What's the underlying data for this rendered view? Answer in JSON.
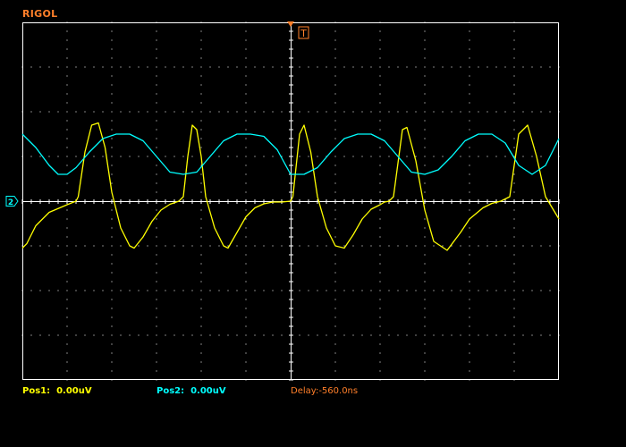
{
  "brand": {
    "label": "RIGOL",
    "color": "#ff7f2a"
  },
  "markers": {
    "trigger_label": "T",
    "ch2_label": "2",
    "marker_color": "#ff7f2a"
  },
  "status": {
    "pos1_label": "Pos1:",
    "pos1_value": "0.00uV",
    "pos1_color": "#ffff00",
    "pos2_label": "Pos2:",
    "pos2_value": "0.00uV",
    "pos2_color": "#00ffff",
    "delay_label": "Delay:-560.0ns",
    "delay_color": "#ff7f2a"
  },
  "chart_data": {
    "type": "line",
    "title": "",
    "xlabel": "",
    "ylabel": "",
    "grid": true,
    "x_divisions": 12,
    "y_divisions": 8,
    "xlim": [
      0,
      12
    ],
    "ylim": [
      -4,
      4
    ],
    "period_div": 2.46,
    "series": [
      {
        "channel": "CH1",
        "color": "#ffff00",
        "x": [
          0,
          0.1,
          0.3,
          0.6,
          1.0,
          1.2,
          1.25,
          1.4,
          1.55,
          1.7,
          1.85,
          2.0,
          2.2,
          2.4,
          2.5,
          2.7,
          2.9,
          3.1,
          3.3,
          3.5,
          3.6,
          3.7,
          3.8,
          3.9,
          4.0,
          4.1,
          4.3,
          4.5,
          4.6,
          4.8,
          5.0,
          5.2,
          5.4,
          5.6,
          5.8,
          6.0,
          6.05,
          6.2,
          6.3,
          6.45,
          6.6,
          6.8,
          7.0,
          7.2,
          7.4,
          7.6,
          7.8,
          8.0,
          8.1,
          8.2,
          8.3,
          8.5,
          8.6,
          8.8,
          9.0,
          9.2,
          9.5,
          9.8,
          10.0,
          10.3,
          10.5,
          10.7,
          10.9,
          11.1,
          11.3,
          11.5,
          11.7,
          12.0
        ],
        "y": [
          -1.05,
          -0.95,
          -0.55,
          -0.25,
          -0.08,
          0.0,
          0.1,
          1.1,
          1.7,
          1.75,
          1.2,
          0.2,
          -0.6,
          -1.0,
          -1.05,
          -0.8,
          -0.45,
          -0.2,
          -0.07,
          0.0,
          0.1,
          1.0,
          1.7,
          1.6,
          1.0,
          0.1,
          -0.6,
          -1.0,
          -1.05,
          -0.7,
          -0.35,
          -0.15,
          -0.06,
          -0.02,
          -0.02,
          0.0,
          0.1,
          1.5,
          1.7,
          1.1,
          0.1,
          -0.6,
          -1.0,
          -1.05,
          -0.75,
          -0.4,
          -0.18,
          -0.08,
          -0.02,
          0.0,
          0.1,
          1.6,
          1.65,
          0.9,
          -0.2,
          -0.9,
          -1.1,
          -0.7,
          -0.4,
          -0.15,
          -0.05,
          0.0,
          0.1,
          1.5,
          1.7,
          1.0,
          0.1,
          -0.4
        ]
      },
      {
        "channel": "CH2",
        "color": "#00ffff",
        "x": [
          0,
          0.3,
          0.6,
          0.8,
          1.0,
          1.2,
          1.5,
          1.8,
          2.1,
          2.4,
          2.7,
          3.0,
          3.3,
          3.6,
          3.9,
          4.2,
          4.5,
          4.8,
          5.1,
          5.4,
          5.7,
          6.0,
          6.3,
          6.6,
          6.9,
          7.2,
          7.5,
          7.8,
          8.1,
          8.4,
          8.7,
          9.0,
          9.3,
          9.6,
          9.9,
          10.2,
          10.5,
          10.8,
          11.1,
          11.4,
          11.7,
          12.0
        ],
        "y": [
          1.5,
          1.2,
          0.8,
          0.6,
          0.6,
          0.75,
          1.1,
          1.4,
          1.5,
          1.5,
          1.35,
          1.0,
          0.65,
          0.6,
          0.65,
          1.0,
          1.35,
          1.5,
          1.5,
          1.45,
          1.15,
          0.6,
          0.6,
          0.75,
          1.1,
          1.4,
          1.5,
          1.5,
          1.35,
          1.0,
          0.65,
          0.6,
          0.7,
          1.0,
          1.35,
          1.5,
          1.5,
          1.3,
          0.8,
          0.6,
          0.8,
          1.4
        ]
      }
    ]
  }
}
